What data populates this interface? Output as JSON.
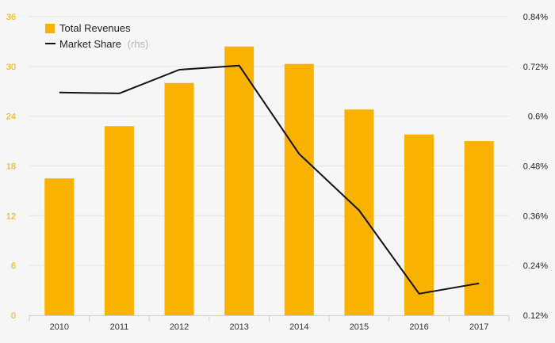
{
  "chart_data": {
    "type": "bar",
    "categories": [
      "2010",
      "2011",
      "2012",
      "2013",
      "2014",
      "2015",
      "2016",
      "2017"
    ],
    "series": [
      {
        "name": "Total Revenues",
        "kind": "bar",
        "axis": "left",
        "color": "#f9b200",
        "values": [
          16.5,
          22.8,
          28.0,
          32.4,
          30.3,
          24.8,
          21.8,
          21.0
        ]
      },
      {
        "name": "Market Share",
        "name_suffix": "(rhs)",
        "kind": "line",
        "axis": "right",
        "color": "#111111",
        "values": [
          0.657,
          0.655,
          0.712,
          0.722,
          0.509,
          0.373,
          0.172,
          0.197
        ]
      }
    ],
    "y_left": {
      "lim": [
        0,
        36
      ],
      "ticks": [
        0,
        6,
        12,
        18,
        24,
        30,
        36
      ],
      "tick_labels": [
        "0",
        "6",
        "12",
        "18",
        "24",
        "30",
        "36"
      ],
      "color": "#f2a900"
    },
    "y_right": {
      "lim": [
        0.12,
        0.84
      ],
      "ticks": [
        0.12,
        0.24,
        0.36,
        0.48,
        0.6,
        0.72,
        0.84
      ],
      "tick_labels": [
        "0.12%",
        "0.24%",
        "0.36%",
        "0.48%",
        "0.6%",
        "0.72%",
        "0.84%"
      ]
    },
    "grid": true,
    "legend_position": "top-left"
  }
}
